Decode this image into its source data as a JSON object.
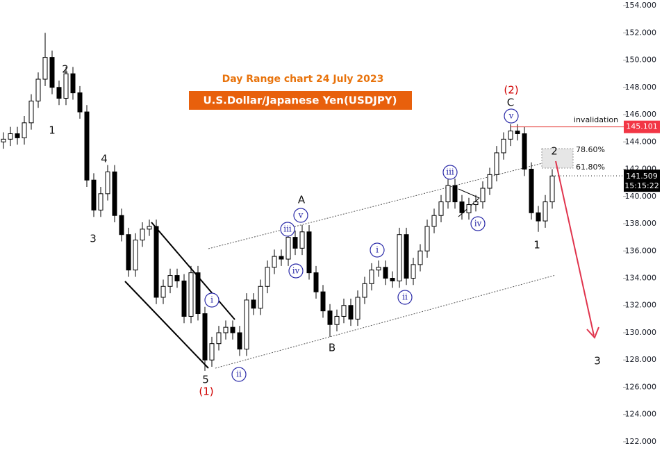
{
  "chart_data": {
    "type": "candlestick",
    "title": "Day Range chart 24 July 2023",
    "subtitle": "U.S.Dollar/Japanese Yen(USDJPY)",
    "ylim": [
      121.03,
      154.41
    ],
    "yticks": [
      {
        "value": 122,
        "label": "122.000"
      },
      {
        "value": 124,
        "label": "124.000"
      },
      {
        "value": 126,
        "label": "126.000"
      },
      {
        "value": 128,
        "label": "128.000"
      },
      {
        "value": 130,
        "label": "130.000"
      },
      {
        "value": 132,
        "label": "132.000"
      },
      {
        "value": 134,
        "label": "134.000"
      },
      {
        "value": 136,
        "label": "136.000"
      },
      {
        "value": 138,
        "label": "138.000"
      },
      {
        "value": 140,
        "label": "140.000"
      },
      {
        "value": 142,
        "label": "142.000"
      },
      {
        "value": 144,
        "label": "144.000"
      },
      {
        "value": 146,
        "label": "146.000"
      },
      {
        "value": 148,
        "label": "148.000"
      },
      {
        "value": 150,
        "label": "150.000"
      },
      {
        "value": 152,
        "label": "152.000"
      },
      {
        "value": 154,
        "label": "154.000"
      }
    ],
    "up_color": "#ffffff",
    "down_color": "#000000",
    "open": [
      144.0,
      144.2,
      144.6,
      144.3,
      145.4,
      147.0,
      148.6,
      150.2,
      148.0,
      147.2,
      149.0,
      147.6,
      146.2,
      141.2,
      139.0,
      140.2,
      141.8,
      138.6,
      137.2,
      134.6,
      136.8,
      137.6,
      137.8,
      132.6,
      133.4,
      134.2,
      133.8,
      131.2,
      134.4,
      131.4,
      128.0,
      129.2,
      130.0,
      130.4,
      130.0,
      128.8,
      132.4,
      131.8,
      133.4,
      134.8,
      135.6,
      135.4,
      137.0,
      136.2,
      137.4,
      134.4,
      133.0,
      131.6,
      130.6,
      131.2,
      132.0,
      131.0,
      132.6,
      133.6,
      134.6,
      134.8,
      134.0,
      133.8,
      137.2,
      134.0,
      135.0,
      136.0,
      137.8,
      138.6,
      139.6,
      140.8,
      139.6,
      138.8,
      139.4,
      139.6,
      140.6,
      141.6,
      143.2,
      144.2,
      144.8,
      144.6,
      142.0,
      138.8,
      138.2,
      139.6
    ],
    "high": [
      144.7,
      145.1,
      145.1,
      145.9,
      147.5,
      149.1,
      152.0,
      150.7,
      148.5,
      149.5,
      149.5,
      148.1,
      146.7,
      141.7,
      140.7,
      142.3,
      142.3,
      139.1,
      137.7,
      137.3,
      138.1,
      138.3,
      138.3,
      133.9,
      134.7,
      134.7,
      134.3,
      134.9,
      134.9,
      131.9,
      129.7,
      130.5,
      130.9,
      130.9,
      130.5,
      132.9,
      132.9,
      133.9,
      135.3,
      136.1,
      136.1,
      137.5,
      137.5,
      137.9,
      137.9,
      134.9,
      133.5,
      132.1,
      131.7,
      132.5,
      132.5,
      133.1,
      134.1,
      135.1,
      135.3,
      135.3,
      134.5,
      137.7,
      137.7,
      135.5,
      136.5,
      138.3,
      139.1,
      140.1,
      141.3,
      141.3,
      140.1,
      139.9,
      140.1,
      141.1,
      142.1,
      143.7,
      144.7,
      145.3,
      145.3,
      145.1,
      142.5,
      139.3,
      140.1,
      142.0
    ],
    "low": [
      143.5,
      143.7,
      143.8,
      143.8,
      144.9,
      146.5,
      148.1,
      147.5,
      146.7,
      146.7,
      147.1,
      145.7,
      140.7,
      138.5,
      138.5,
      139.7,
      138.1,
      136.7,
      134.1,
      134.1,
      136.3,
      137.1,
      132.1,
      132.1,
      132.9,
      133.3,
      130.7,
      130.7,
      130.9,
      127.2,
      127.5,
      128.7,
      129.5,
      129.5,
      128.3,
      128.3,
      131.3,
      131.3,
      132.9,
      134.3,
      134.9,
      134.9,
      135.7,
      135.7,
      133.9,
      132.5,
      131.1,
      129.7,
      130.1,
      130.7,
      130.5,
      130.5,
      132.1,
      133.1,
      134.1,
      133.5,
      133.3,
      133.3,
      133.5,
      133.5,
      134.5,
      135.5,
      137.3,
      138.1,
      139.1,
      139.1,
      138.3,
      138.3,
      138.9,
      139.1,
      140.1,
      141.1,
      142.7,
      143.7,
      144.1,
      141.5,
      138.3,
      137.4,
      137.7,
      139.1
    ],
    "close": [
      144.2,
      144.6,
      144.3,
      145.4,
      147.0,
      148.6,
      150.2,
      148.0,
      147.2,
      149.0,
      147.6,
      146.2,
      141.2,
      139.0,
      140.2,
      141.8,
      138.6,
      137.2,
      134.6,
      136.8,
      137.6,
      137.8,
      132.6,
      133.4,
      134.2,
      133.8,
      131.2,
      134.4,
      131.4,
      128.0,
      129.2,
      130.0,
      130.4,
      130.0,
      128.8,
      132.4,
      131.8,
      133.4,
      134.8,
      135.6,
      135.4,
      137.0,
      136.2,
      137.4,
      134.4,
      133.0,
      131.6,
      130.6,
      131.2,
      132.0,
      131.0,
      132.6,
      133.6,
      134.6,
      134.8,
      134.0,
      133.8,
      137.2,
      134.0,
      135.0,
      136.0,
      137.8,
      138.6,
      139.6,
      140.8,
      139.6,
      138.8,
      139.4,
      139.6,
      140.6,
      141.6,
      143.2,
      144.2,
      144.8,
      144.6,
      142.0,
      138.8,
      138.2,
      139.6,
      141.5
    ],
    "invalidation_label": "invalidation",
    "invalidation_level": 145.101,
    "last_price": 141.509,
    "countdown": "15:15:22",
    "fib_labels": [
      "78.60%",
      "61.80%"
    ],
    "annotations": [
      "2",
      "1",
      "4",
      "3",
      "5",
      "(1)",
      "i",
      "ii",
      "iii",
      "v",
      "A",
      "iv",
      "B",
      "i",
      "ii",
      "iii",
      "iv",
      "v",
      "C",
      "(2)",
      "2",
      "1",
      "3"
    ]
  }
}
